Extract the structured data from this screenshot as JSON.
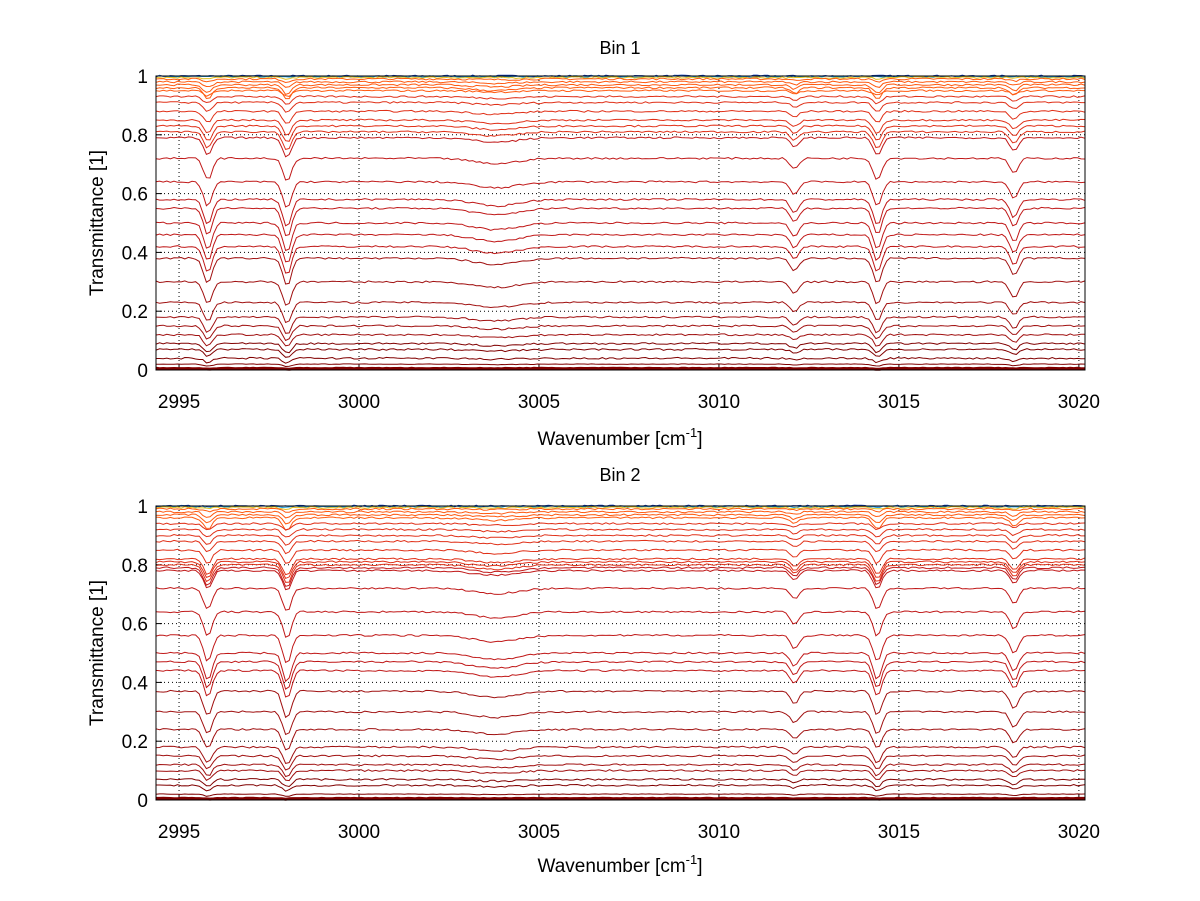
{
  "chart_data": [
    {
      "type": "line",
      "title": "Bin 1",
      "xlabel": "Wavenumber [cm",
      "xlabel_sup": "-1",
      "xlabel_end": "]",
      "ylabel": "Transmittance [1]",
      "xlim": [
        2994.36,
        3020.17
      ],
      "ylim": [
        0,
        1
      ],
      "xticks": [
        2995,
        3000,
        3005,
        3010,
        3015,
        3020
      ],
      "xtick_labels": [
        "2995",
        "3000",
        "3005",
        "3010",
        "3015",
        "3020"
      ],
      "yticks": [
        0,
        0.2,
        0.4,
        0.6,
        0.8,
        1
      ],
      "ytick_labels": [
        "0",
        "0.2",
        "0.4",
        "0.6",
        "0.8",
        "1"
      ],
      "grid": true,
      "absorption_lines_cm-1": [
        2995.8,
        2998.0,
        3003.8,
        3012.1,
        3014.4,
        3018.2
      ],
      "series_baselines": [
        1.0,
        0.998,
        0.995,
        0.99,
        0.98,
        0.97,
        0.96,
        0.95,
        0.93,
        0.91,
        0.88,
        0.85,
        0.83,
        0.81,
        0.79,
        0.72,
        0.64,
        0.58,
        0.55,
        0.5,
        0.46,
        0.42,
        0.38,
        0.3,
        0.23,
        0.18,
        0.15,
        0.12,
        0.09,
        0.07,
        0.04,
        0.02,
        0.005
      ]
    },
    {
      "type": "line",
      "title": "Bin 2",
      "xlabel": "Wavenumber [cm",
      "xlabel_sup": "-1",
      "xlabel_end": "]",
      "ylabel": "Transmittance [1]",
      "xlim": [
        2994.36,
        3020.17
      ],
      "ylim": [
        0,
        1
      ],
      "xticks": [
        2995,
        3000,
        3005,
        3010,
        3015,
        3020
      ],
      "xtick_labels": [
        "2995",
        "3000",
        "3005",
        "3010",
        "3015",
        "3020"
      ],
      "yticks": [
        0,
        0.2,
        0.4,
        0.6,
        0.8,
        1
      ],
      "ytick_labels": [
        "0",
        "0.2",
        "0.4",
        "0.6",
        "0.8",
        "1"
      ],
      "grid": true,
      "absorption_lines_cm-1": [
        2995.8,
        2998.0,
        3003.8,
        3012.1,
        3014.4,
        3018.2
      ],
      "series_baselines": [
        1.0,
        0.998,
        0.995,
        0.99,
        0.98,
        0.97,
        0.96,
        0.94,
        0.92,
        0.9,
        0.88,
        0.85,
        0.82,
        0.81,
        0.8,
        0.79,
        0.78,
        0.72,
        0.64,
        0.56,
        0.5,
        0.47,
        0.44,
        0.37,
        0.3,
        0.24,
        0.18,
        0.15,
        0.12,
        0.1,
        0.07,
        0.05,
        0.02,
        0.005
      ]
    }
  ]
}
